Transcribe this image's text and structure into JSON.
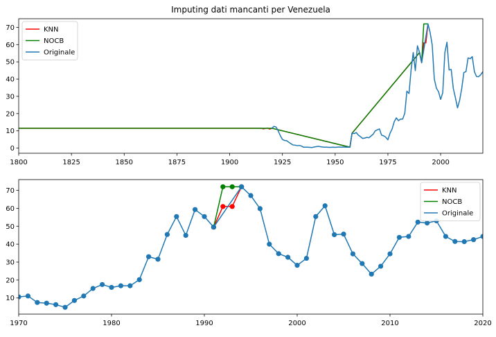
{
  "chart_data": [
    {
      "type": "line",
      "title": "Imputing dati mancanti per Venezuela",
      "xlim": [
        1800,
        2020
      ],
      "ylim": [
        -3,
        75
      ],
      "x_ticks": [
        1800,
        1825,
        1850,
        1875,
        1900,
        1925,
        1950,
        1975,
        2000
      ],
      "y_ticks": [
        0,
        10,
        20,
        30,
        40,
        50,
        60,
        70
      ],
      "legend": "top-left",
      "grid": false,
      "series": [
        {
          "name": "KNN",
          "color": "#ff0000",
          "x": [
            1800,
            1915,
            1916,
            1917,
            1918,
            1919,
            1920,
            1957,
            1958,
            1990,
            1991,
            1992,
            1993,
            1994
          ],
          "y": [
            11.5,
            11.5,
            11.1,
            11.4,
            11.6,
            11.0,
            11.5,
            0.5,
            8.6,
            55.4,
            49.5,
            61.0,
            61.0,
            72.0
          ]
        },
        {
          "name": "NOCB",
          "color": "#008000",
          "x": [
            1800,
            1920,
            1957,
            1958,
            1990,
            1991,
            1992,
            1993,
            1994
          ],
          "y": [
            11.5,
            11.5,
            0.5,
            8.6,
            55.4,
            49.5,
            72.0,
            72.0,
            72.0
          ]
        },
        {
          "name": "Originale",
          "color": "#1f77b4",
          "x": [
            1920,
            1921,
            1922,
            1923,
            1924,
            1925,
            1926,
            1927,
            1928,
            1929,
            1930,
            1931,
            1932,
            1933,
            1934,
            1935,
            1936,
            1937,
            1938,
            1939,
            1940,
            1941,
            1942,
            1943,
            1944,
            1945,
            1946,
            1947,
            1948,
            1949,
            1950,
            1951,
            1952,
            1953,
            1954,
            1955,
            1956,
            1957,
            1958,
            1959,
            1960,
            1961,
            1962,
            1963,
            1964,
            1965,
            1966,
            1967,
            1968,
            1969,
            1970,
            1971,
            1972,
            1973,
            1974,
            1975,
            1976,
            1977,
            1978,
            1979,
            1980,
            1981,
            1982,
            1983,
            1984,
            1985,
            1986,
            1987,
            1988,
            1989,
            1990,
            1991,
            1994,
            1995,
            1996,
            1997,
            1998,
            1999,
            2000,
            2001,
            2002,
            2003,
            2004,
            2005,
            2006,
            2007,
            2008,
            2009,
            2010,
            2011,
            2012,
            2013,
            2014,
            2015,
            2016,
            2017,
            2018,
            2019,
            2020
          ],
          "y": [
            11.5,
            12.6,
            12.2,
            10.0,
            7.2,
            5.0,
            4.4,
            4.3,
            3.4,
            2.6,
            1.8,
            1.7,
            1.4,
            1.5,
            1.2,
            0.5,
            0.5,
            0.5,
            0.4,
            0.3,
            0.6,
            0.8,
            1.0,
            0.8,
            0.6,
            0.5,
            0.5,
            0.4,
            0.4,
            0.5,
            0.4,
            0.5,
            0.6,
            0.5,
            0.6,
            0.5,
            0.5,
            0.5,
            8.6,
            8.4,
            9.0,
            7.5,
            6.6,
            5.6,
            5.8,
            6.2,
            6.0,
            7.0,
            8.0,
            10.0,
            10.6,
            11.1,
            7.5,
            7.1,
            6.3,
            4.8,
            8.6,
            11.1,
            15.3,
            17.5,
            15.9,
            16.8,
            16.8,
            20.2,
            33.0,
            31.6,
            45.4,
            55.4,
            44.9,
            59.3,
            55.4,
            49.5,
            72.0,
            67.1,
            59.8,
            40.0,
            34.7,
            32.7,
            28.2,
            32.1,
            55.4,
            61.4,
            45.3,
            45.6,
            34.6,
            29.2,
            23.3,
            27.7,
            34.6,
            43.8,
            44.3,
            52.3,
            51.8,
            53.0,
            44.3,
            41.5,
            41.4,
            42.5,
            44.3
          ]
        }
      ]
    },
    {
      "type": "line",
      "xlim": [
        1970,
        2020
      ],
      "ylim": [
        1,
        76
      ],
      "x_ticks": [
        1970,
        1980,
        1990,
        2000,
        2010,
        2020
      ],
      "y_ticks": [
        10,
        20,
        30,
        40,
        50,
        60,
        70
      ],
      "legend": "top-right",
      "grid": false,
      "markers": true,
      "series": [
        {
          "name": "KNN",
          "color": "#ff0000",
          "x": [
            1991,
            1992,
            1993,
            1994
          ],
          "y": [
            49.5,
            61.0,
            61.0,
            72.0
          ]
        },
        {
          "name": "NOCB",
          "color": "#008000",
          "x": [
            1991,
            1992,
            1993,
            1994
          ],
          "y": [
            49.5,
            72.0,
            72.0,
            72.0
          ]
        },
        {
          "name": "Originale",
          "color": "#1f77b4",
          "x": [
            1970,
            1971,
            1972,
            1973,
            1974,
            1975,
            1976,
            1977,
            1978,
            1979,
            1980,
            1981,
            1982,
            1983,
            1984,
            1985,
            1986,
            1987,
            1988,
            1989,
            1990,
            1991,
            1994,
            1995,
            1996,
            1997,
            1998,
            1999,
            2000,
            2001,
            2002,
            2003,
            2004,
            2005,
            2006,
            2007,
            2008,
            2009,
            2010,
            2011,
            2012,
            2013,
            2014,
            2015,
            2016,
            2017,
            2018,
            2019,
            2020
          ],
          "y": [
            10.6,
            11.1,
            7.5,
            7.1,
            6.3,
            4.8,
            8.6,
            11.1,
            15.3,
            17.5,
            15.9,
            16.8,
            16.8,
            20.2,
            33.0,
            31.6,
            45.4,
            55.4,
            44.9,
            59.3,
            55.4,
            49.5,
            72.0,
            67.1,
            59.8,
            40.0,
            34.7,
            32.7,
            28.2,
            32.1,
            55.4,
            61.4,
            45.3,
            45.6,
            34.6,
            29.2,
            23.3,
            27.7,
            34.6,
            43.8,
            44.3,
            52.3,
            51.8,
            53.0,
            44.3,
            41.5,
            41.4,
            42.5,
            44.3
          ]
        }
      ]
    }
  ]
}
